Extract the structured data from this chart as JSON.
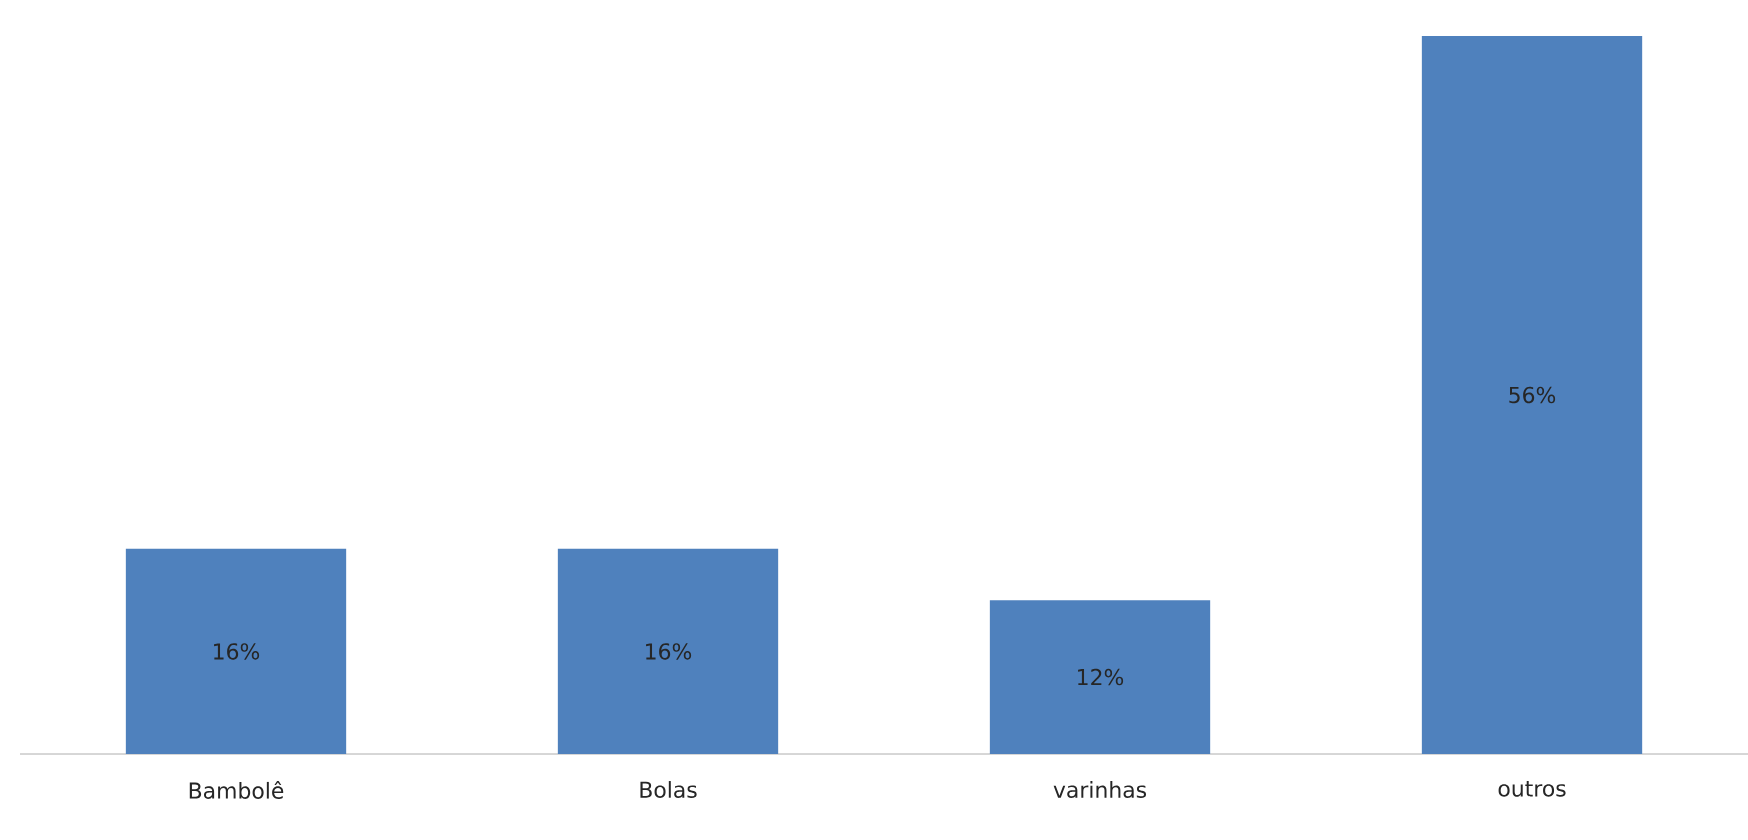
{
  "chart_data": {
    "type": "bar",
    "categories": [
      "Bambolê",
      "Bolas",
      "varinhas",
      "outros"
    ],
    "values": [
      16,
      16,
      12,
      56
    ],
    "value_labels": [
      "16%",
      "16%",
      "12%",
      "56%"
    ],
    "color": "#4f81bd"
  }
}
